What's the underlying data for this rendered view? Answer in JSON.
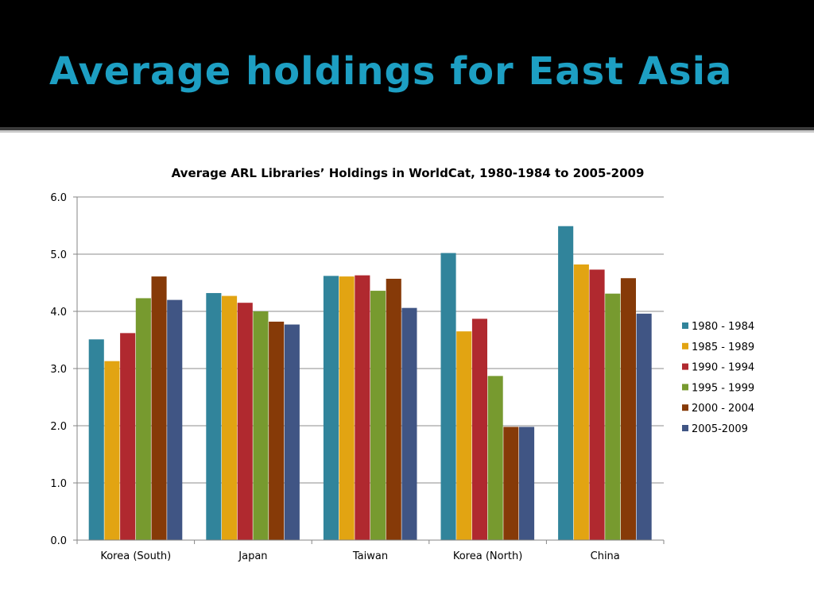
{
  "slide": {
    "title": "Average holdings for East Asia"
  },
  "chart_data": {
    "type": "bar",
    "title": "Average ARL Libraries’ Holdings in WorldCat, 1980-1984 to 2005-2009",
    "xlabel": "",
    "ylabel": "",
    "ylim": [
      0,
      6
    ],
    "yticks": [
      "0.0",
      "1.0",
      "2.0",
      "3.0",
      "4.0",
      "5.0",
      "6.0"
    ],
    "grid": true,
    "legend_position": "right",
    "categories": [
      "Korea (South)",
      "Japan",
      "Taiwan",
      "Korea (North)",
      "China"
    ],
    "series": [
      {
        "name": "1980 - 1984",
        "color": "#31849b",
        "values": [
          3.51,
          4.32,
          4.62,
          5.02,
          5.49
        ]
      },
      {
        "name": "1985 - 1989",
        "color": "#e2a412",
        "values": [
          3.13,
          4.27,
          4.61,
          3.65,
          4.82
        ]
      },
      {
        "name": "1990 - 1994",
        "color": "#b0292f",
        "values": [
          3.62,
          4.15,
          4.63,
          3.87,
          4.73
        ]
      },
      {
        "name": "1995 - 1999",
        "color": "#779a2f",
        "values": [
          4.23,
          4.0,
          4.36,
          2.87,
          4.31
        ]
      },
      {
        "name": "2000 - 2004",
        "color": "#863a08",
        "values": [
          4.61,
          3.82,
          4.57,
          1.98,
          4.58
        ]
      },
      {
        "name": "2005-2009",
        "color": "#405584",
        "values": [
          4.2,
          3.77,
          4.06,
          1.98,
          3.96
        ]
      }
    ]
  }
}
